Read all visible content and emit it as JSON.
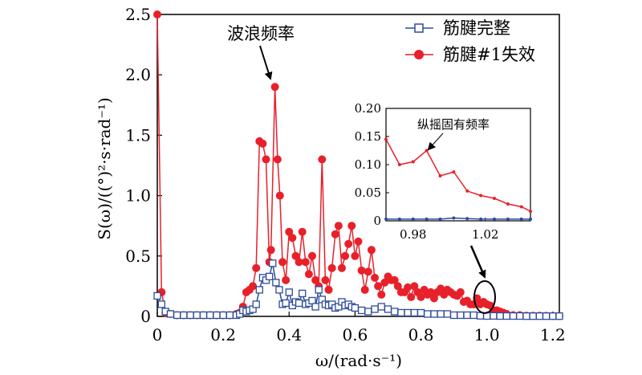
{
  "chart_data": [
    {
      "type": "line",
      "ylabel": "S(ω)/((°)²·s·rad⁻¹)",
      "xlabel": "ω/(rad·s⁻¹)",
      "xlim": [
        0,
        1.22
      ],
      "ylim": [
        0,
        2.5
      ],
      "x_ticks": [
        "0",
        "0.2",
        "0.4",
        "0.6",
        "0.8",
        "1.0",
        "1.2"
      ],
      "y_ticks": [
        "0",
        "0.5",
        "1.0",
        "1.5",
        "2.0",
        "2.5"
      ],
      "legend_position": "top-right",
      "annotations": [
        {
          "text": "波浪频率",
          "points_to": [
            0.357,
            1.9
          ]
        }
      ],
      "series": [
        {
          "name": "筋腱完整",
          "color": "#2e4b9b",
          "marker": "open-square",
          "x": [
            0.0,
            0.013,
            0.025,
            0.04,
            0.06,
            0.08,
            0.1,
            0.12,
            0.14,
            0.16,
            0.18,
            0.2,
            0.22,
            0.24,
            0.25,
            0.26,
            0.27,
            0.28,
            0.29,
            0.3,
            0.31,
            0.32,
            0.33,
            0.34,
            0.35,
            0.36,
            0.37,
            0.38,
            0.39,
            0.4,
            0.41,
            0.42,
            0.43,
            0.44,
            0.45,
            0.46,
            0.47,
            0.48,
            0.49,
            0.5,
            0.51,
            0.52,
            0.53,
            0.54,
            0.55,
            0.56,
            0.57,
            0.58,
            0.59,
            0.6,
            0.62,
            0.64,
            0.66,
            0.68,
            0.7,
            0.72,
            0.74,
            0.76,
            0.78,
            0.8,
            0.82,
            0.84,
            0.86,
            0.88,
            0.9,
            0.92,
            0.94,
            0.96,
            0.98,
            1.0,
            1.02,
            1.04,
            1.06,
            1.08,
            1.1,
            1.12,
            1.14,
            1.16,
            1.18,
            1.2,
            1.22
          ],
          "y": [
            0.17,
            0.1,
            0.04,
            0.02,
            0.01,
            0.01,
            0.01,
            0.01,
            0.01,
            0.01,
            0.01,
            0.01,
            0.01,
            0.01,
            0.02,
            0.05,
            0.04,
            0.05,
            0.06,
            0.1,
            0.22,
            0.32,
            0.3,
            0.33,
            0.44,
            0.28,
            0.22,
            0.1,
            0.11,
            0.2,
            0.09,
            0.12,
            0.11,
            0.19,
            0.1,
            0.11,
            0.13,
            0.08,
            0.22,
            0.14,
            0.1,
            0.09,
            0.1,
            0.07,
            0.08,
            0.12,
            0.09,
            0.1,
            0.08,
            0.07,
            0.05,
            0.04,
            0.06,
            0.08,
            0.06,
            0.04,
            0.03,
            0.03,
            0.03,
            0.03,
            0.02,
            0.02,
            0.02,
            0.02,
            0.01,
            0.01,
            0.01,
            0.01,
            0.005,
            0.003,
            0.004,
            0.003,
            0.003,
            0.003,
            0.003,
            0.002,
            0.002,
            0.002,
            0.002,
            0.002,
            0.002
          ]
        },
        {
          "name": "筋腱#1失效",
          "color": "#e8202a",
          "marker": "filled-circle",
          "x": [
            0.0,
            0.013,
            0.025,
            0.04,
            0.06,
            0.08,
            0.1,
            0.12,
            0.14,
            0.16,
            0.18,
            0.2,
            0.22,
            0.24,
            0.25,
            0.26,
            0.27,
            0.28,
            0.29,
            0.3,
            0.31,
            0.32,
            0.33,
            0.34,
            0.345,
            0.357,
            0.365,
            0.372,
            0.38,
            0.39,
            0.4,
            0.41,
            0.42,
            0.43,
            0.44,
            0.45,
            0.46,
            0.47,
            0.48,
            0.49,
            0.5,
            0.51,
            0.52,
            0.53,
            0.54,
            0.55,
            0.56,
            0.57,
            0.58,
            0.59,
            0.6,
            0.61,
            0.62,
            0.63,
            0.64,
            0.65,
            0.66,
            0.67,
            0.68,
            0.69,
            0.7,
            0.71,
            0.72,
            0.73,
            0.74,
            0.75,
            0.76,
            0.77,
            0.78,
            0.79,
            0.8,
            0.81,
            0.82,
            0.83,
            0.84,
            0.85,
            0.86,
            0.87,
            0.88,
            0.89,
            0.9,
            0.91,
            0.92,
            0.93,
            0.94,
            0.95,
            0.96,
            0.97,
            0.98,
            0.99,
            1.0,
            1.01,
            1.02,
            1.03,
            1.04,
            1.05,
            1.06,
            1.08,
            1.1,
            1.12,
            1.14,
            1.16,
            1.18,
            1.2,
            1.22
          ],
          "y": [
            2.5,
            0.2,
            0.03,
            0.02,
            0.01,
            0.01,
            0.01,
            0.01,
            0.01,
            0.01,
            0.01,
            0.01,
            0.01,
            0.02,
            0.03,
            0.08,
            0.2,
            0.22,
            0.25,
            0.4,
            1.45,
            1.43,
            1.3,
            0.45,
            0.55,
            1.9,
            1.3,
            1.0,
            0.45,
            0.3,
            0.7,
            0.65,
            0.5,
            0.45,
            0.7,
            0.45,
            0.35,
            0.5,
            0.3,
            0.25,
            1.3,
            0.3,
            0.22,
            0.4,
            0.68,
            0.75,
            0.4,
            0.5,
            0.6,
            0.75,
            0.5,
            0.62,
            0.38,
            0.22,
            0.37,
            0.55,
            0.32,
            0.25,
            0.18,
            0.28,
            0.33,
            0.3,
            0.3,
            0.25,
            0.2,
            0.2,
            0.24,
            0.16,
            0.25,
            0.2,
            0.16,
            0.22,
            0.18,
            0.2,
            0.15,
            0.2,
            0.23,
            0.18,
            0.22,
            0.2,
            0.18,
            0.17,
            0.2,
            0.12,
            0.13,
            0.1,
            0.1,
            0.15,
            0.1,
            0.12,
            0.1,
            0.09,
            0.05,
            0.05,
            0.04,
            0.03,
            0.02,
            0.01,
            0.01,
            0.005,
            0.005,
            0.005,
            0.004,
            0.003,
            0.003
          ]
        }
      ]
    },
    {
      "type": "line",
      "xlim": [
        0.965,
        1.045
      ],
      "ylim": [
        0,
        0.2
      ],
      "x_ticks": [
        "0.98",
        "1.02"
      ],
      "y_ticks": [
        "0",
        "0.05",
        "0.10",
        "0.15",
        "0.20"
      ],
      "annotations": [
        {
          "text": "纵摇固有频率",
          "points_to": [
            0.99,
            0.122
          ]
        }
      ],
      "series": [
        {
          "name": "筋腱完整",
          "color": "#2e4b9b",
          "marker": "dot",
          "x": [
            0.965,
            0.9725,
            0.98,
            0.9875,
            0.995,
            1.0025,
            1.01,
            1.0175,
            1.025,
            1.0325,
            1.04,
            1.045
          ],
          "y": [
            0.003,
            0.003,
            0.003,
            0.003,
            0.003,
            0.005,
            0.004,
            0.003,
            0.003,
            0.003,
            0.003,
            0.003
          ]
        },
        {
          "name": "筋腱#1失效",
          "color": "#e8202a",
          "marker": "dot",
          "x": [
            0.965,
            0.9725,
            0.98,
            0.9875,
            0.995,
            1.0025,
            1.01,
            1.0175,
            1.025,
            1.0325,
            1.04,
            1.045
          ],
          "y": [
            0.145,
            0.1,
            0.105,
            0.125,
            0.08,
            0.087,
            0.053,
            0.045,
            0.04,
            0.03,
            0.025,
            0.017
          ]
        }
      ]
    }
  ]
}
